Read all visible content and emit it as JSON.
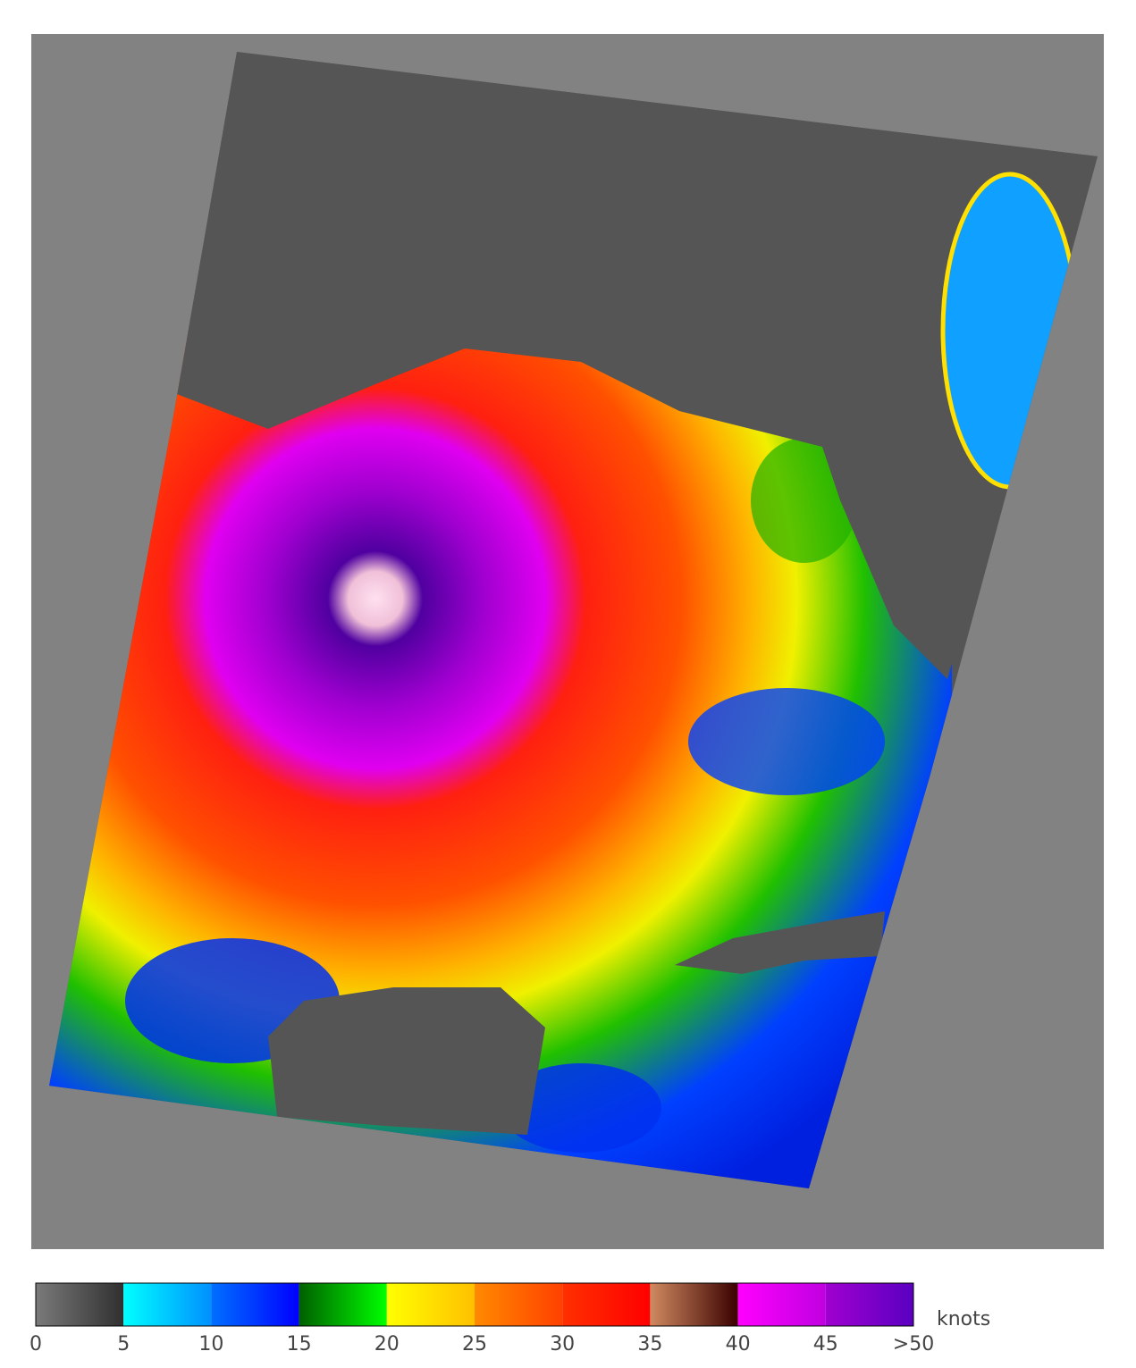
{
  "colorbar": {
    "lim": [
      0,
      50
    ],
    "ticks": [
      0,
      5,
      10,
      15,
      20,
      25,
      30,
      35,
      40,
      45,
      {
        "value": 50,
        "label": ">50"
      }
    ],
    "unit": "knots",
    "colors": [
      [
        "#7a7a7a",
        "#303030"
      ],
      [
        "#00ffff",
        "#0090ff"
      ],
      [
        "#0070ff",
        "#0000ff"
      ],
      [
        "#006000",
        "#00ff00"
      ],
      [
        "#ffff00",
        "#ffc000"
      ],
      [
        "#ff8a00",
        "#ff4000"
      ],
      [
        "#ff3000",
        "#ff0000"
      ],
      [
        "#d08a60",
        "#3a0000"
      ],
      [
        "#ff00ff",
        "#c000e0"
      ],
      [
        "#a000d0",
        "#5a00c0"
      ]
    ]
  }
}
